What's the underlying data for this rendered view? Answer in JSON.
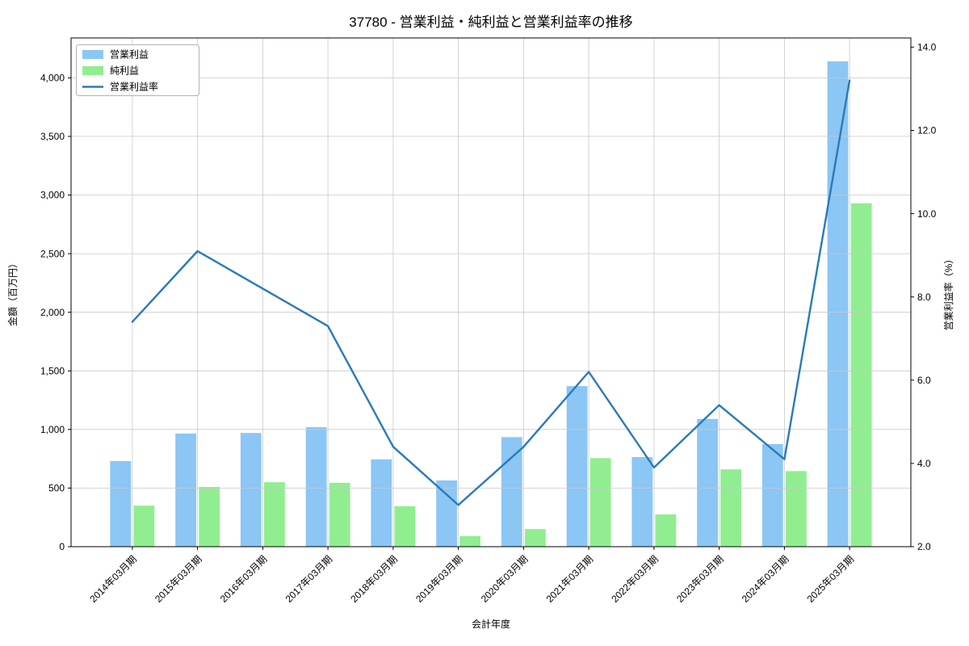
{
  "chart_data": {
    "type": "bar+line",
    "title": "37780 - 営業利益・純利益と営業利益率の推移",
    "xlabel": "会計年度",
    "ylabel_left": "金額（百万円）",
    "ylabel_right": "営業利益率（%）",
    "categories": [
      "2014年03月期",
      "2015年03月期",
      "2016年03月期",
      "2017年03月期",
      "2018年03月期",
      "2019年03月期",
      "2020年03月期",
      "2021年03月期",
      "2022年03月期",
      "2023年03月期",
      "2024年03月期",
      "2025年03月期"
    ],
    "series": [
      {
        "name": "営業利益",
        "type": "bar",
        "axis": "left",
        "color": "#8bc6f5",
        "values": [
          730,
          965,
          970,
          1020,
          745,
          565,
          935,
          1370,
          765,
          1090,
          875,
          4140
        ]
      },
      {
        "name": "純利益",
        "type": "bar",
        "axis": "left",
        "color": "#90ee90",
        "values": [
          350,
          510,
          550,
          545,
          345,
          90,
          150,
          755,
          275,
          660,
          645,
          2930
        ]
      },
      {
        "name": "営業利益率",
        "type": "line",
        "axis": "right",
        "color": "#2a7ab9",
        "values": [
          7.4,
          9.1,
          8.2,
          7.3,
          4.4,
          3.0,
          4.4,
          6.2,
          3.9,
          5.4,
          4.1,
          13.2
        ]
      }
    ],
    "yticks_left": [
      0,
      500,
      1000,
      1500,
      2000,
      2500,
      3000,
      3500,
      4000
    ],
    "yticks_right": [
      2,
      4,
      6,
      8,
      10,
      12,
      14
    ],
    "ylim_left": [
      0,
      4340
    ],
    "ylim_right": [
      2,
      14.22
    ],
    "grid": true,
    "legend_position": "upper left",
    "colors": {
      "grid": "#c9c9c9",
      "frame": "#000000",
      "legend_border": "#b3b3b3",
      "text": "#000000"
    }
  }
}
